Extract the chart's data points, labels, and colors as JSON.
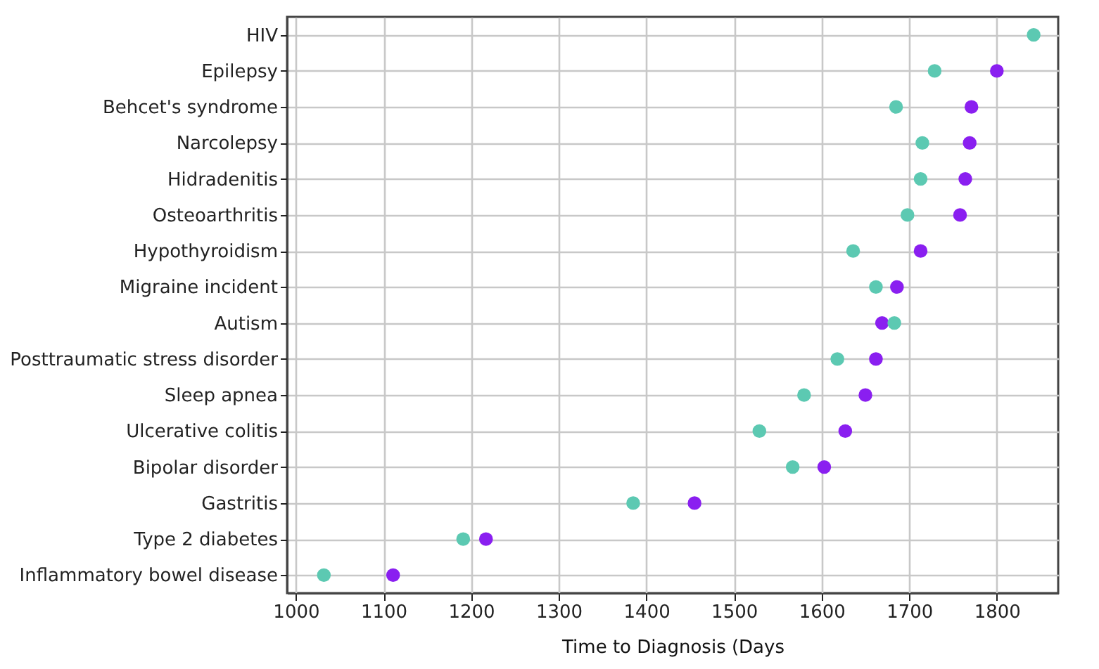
{
  "chart_data": {
    "type": "scatter",
    "xlabel": "Time to Diagnosis (Days",
    "categories": [
      "HIV",
      "Epilepsy",
      "Behcet's syndrome",
      "Narcolepsy",
      "Hidradenitis",
      "Osteoarthritis",
      "Hypothyroidism",
      "Migraine incident",
      "Autism",
      "Posttraumatic stress disorder",
      "Sleep apnea",
      "Ulcerative colitis",
      "Bipolar disorder",
      "Gastritis",
      "Type 2 diabetes",
      "Inflammatory bowel disease"
    ],
    "series": [
      {
        "color": "#8a1ff0",
        "values": [
          null,
          1800,
          1771,
          1769,
          1764,
          1758,
          1713,
          1686,
          1669,
          1662,
          1650,
          1627,
          1603,
          1455,
          1217,
          1111
        ]
      },
      {
        "color": "#5cc9b2",
        "values": [
          1842,
          1729,
          1685,
          1715,
          1713,
          1698,
          1636,
          1662,
          1683,
          1618,
          1580,
          1529,
          1567,
          1385,
          1191,
          1032
        ]
      }
    ],
    "orientation": "horizontal",
    "xlim": [
      990,
      1870
    ],
    "xticks": [
      1000,
      1100,
      1200,
      1300,
      1400,
      1500,
      1600,
      1700,
      1800
    ],
    "grid": true,
    "marker": "circle"
  }
}
